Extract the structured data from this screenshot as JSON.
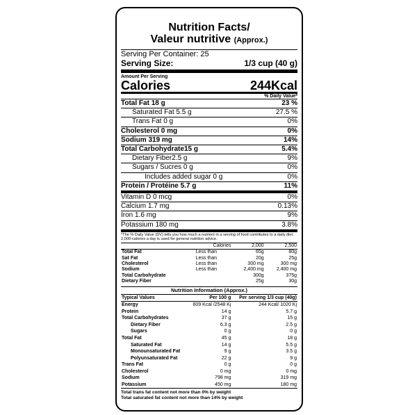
{
  "header": {
    "title_line1": "Nutrition Facts/",
    "title_line2": "Valeur nutritive",
    "title_note": "(Approx.)"
  },
  "serving": {
    "per_container": "Serving Per Container: 25",
    "size_label": "Serving Size:",
    "size_value": "1/3 cup (40 g)"
  },
  "amount_per_serving": "Amount Per Serving",
  "calories": {
    "label": "Calories",
    "value": "244Kcal"
  },
  "dv_heading": "% Daily Value*",
  "nutrients": [
    {
      "label": "Total Fat 18 g",
      "dv": "23 %",
      "bold": true
    },
    {
      "label": "Saturated Fat 5.5 g",
      "dv": "27.5 %",
      "indent": 1
    },
    {
      "label": "Trans Fat 0 g",
      "dv": "0%",
      "indent": 1
    },
    {
      "label": "Cholesterol 0 mg",
      "dv": "0%",
      "bold": true
    },
    {
      "label": "Sodium 319 mg",
      "dv": "14%",
      "bold": true
    },
    {
      "label": "Total Carbohydrate15 g",
      "dv": "5.4%",
      "bold": true
    },
    {
      "label": "Dietary Fiber2.5 g",
      "dv": "9%",
      "indent": 1
    },
    {
      "label": "Sugars / Sucres 0 g",
      "dv": "0%",
      "indent": 1
    },
    {
      "label": "Includes added sugar 0 g",
      "dv": "0%",
      "indent": 2
    },
    {
      "label": "Protein / Protéine 5.7 g",
      "dv": "11%",
      "bold": true
    }
  ],
  "vitamins_minerals": [
    {
      "label": "Vitamin D  0 mcg",
      "dv": "0%"
    },
    {
      "label": "Calcium 1.7 mg",
      "dv": "0.13%"
    },
    {
      "label": "Iron 1.6 mg",
      "dv": "9%"
    },
    {
      "label": "Potassium 180 mg",
      "dv": "3.8%"
    }
  ],
  "footnote": "*The % Daily Value (DV) tells you how much a nutrient in a serving of food contributes to a daily diet. 2,000-calories a day is used for general nutrition advice.",
  "dv_table": {
    "header": [
      "Calories",
      "2,000",
      "2,500"
    ],
    "rows": [
      {
        "label": "Total Fat",
        "qualifier": "Less than",
        "values": [
          "65g",
          "80g"
        ]
      },
      {
        "label": "Sat Fat",
        "qualifier": "Less than",
        "values": [
          "20g",
          "25g"
        ]
      },
      {
        "label": "Cholesterol",
        "qualifier": "Less than",
        "values": [
          "300 mg",
          "300 mg"
        ]
      },
      {
        "label": "Sodium",
        "qualifier": "Less than",
        "values": [
          "2,400 mg",
          "2,400 mg"
        ]
      },
      {
        "label": "Total Carbohydrate",
        "values": [
          "300g",
          "375g"
        ]
      },
      {
        "label": "Dietary Fiber",
        "values": [
          "25g",
          "30g"
        ]
      }
    ]
  },
  "nutrition_info": {
    "title": "Nutrition Information (Approx.)",
    "header": [
      "Typical Values",
      "Per 100 g",
      "Per serving 1/3 cup (40g)"
    ],
    "rows": [
      {
        "label": "Energy",
        "values": [
          "609 Kcal /2548 Kj",
          "244 Kcal/ 1020 Kj"
        ]
      },
      {
        "label": "Protein",
        "values": [
          "14 g",
          "5.7 g"
        ]
      },
      {
        "label": "Total Carbohydrates",
        "values": [
          "37 g",
          "15 g"
        ]
      },
      {
        "label": "Dietary Fiber",
        "values": [
          "6.3 g",
          "2.5 g"
        ],
        "indent": 1
      },
      {
        "label": "Sugars",
        "values": [
          "0 g",
          "0 g"
        ],
        "indent": 1
      },
      {
        "label": "Total Fat",
        "values": [
          "45 g",
          "18 g"
        ]
      },
      {
        "label": "Saturated Fat",
        "values": [
          "14 g",
          "5.5 g"
        ],
        "indent": 1
      },
      {
        "label": "Monounsaturated Fat",
        "values": [
          "9 g",
          "3.5 g"
        ],
        "indent": 1
      },
      {
        "label": "Polyunsaturated Fat",
        "values": [
          "22 g",
          "9 g"
        ],
        "indent": 1
      },
      {
        "label": "Trans Fat",
        "values": [
          "0 g",
          "0 g"
        ]
      },
      {
        "label": "Cholesterol",
        "values": [
          "0 mg",
          "0 mg"
        ]
      },
      {
        "label": "Sodium",
        "values": [
          "798 mg",
          "319 mg"
        ]
      },
      {
        "label": "Potassium",
        "values": [
          "450 mg",
          "180 mg"
        ]
      }
    ]
  },
  "footer": [
    "Total trans fat content not more than 0% by weight",
    "Total saturated fat content not more than 14% by weight"
  ]
}
